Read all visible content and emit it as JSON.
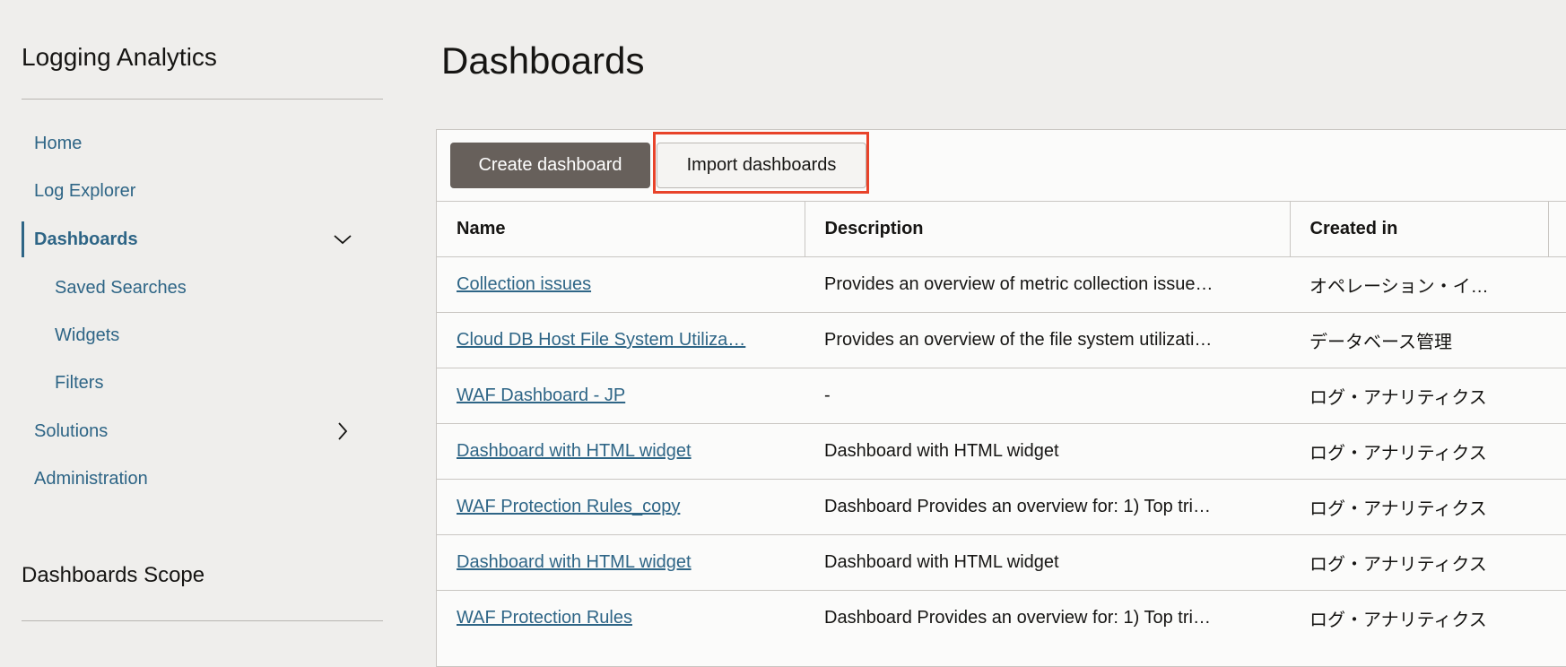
{
  "sidebar": {
    "title": "Logging Analytics",
    "items": [
      {
        "label": "Home"
      },
      {
        "label": "Log Explorer"
      },
      {
        "label": "Dashboards"
      },
      {
        "label": "Saved Searches"
      },
      {
        "label": "Widgets"
      },
      {
        "label": "Filters"
      },
      {
        "label": "Solutions"
      },
      {
        "label": "Administration"
      }
    ],
    "scope_title": "Dashboards Scope"
  },
  "main": {
    "title": "Dashboards",
    "toolbar": {
      "create_label": "Create dashboard",
      "import_label": "Import dashboards"
    },
    "highlight_color": "#e8432a",
    "columns": [
      "Name",
      "Description",
      "Created in"
    ],
    "rows": [
      {
        "name": "Collection issues",
        "description": "Provides an overview of metric collection issue…",
        "created_in": "オペレーション・イ…"
      },
      {
        "name": "Cloud DB Host File System Utiliza…",
        "description": "Provides an overview of the file system utilizati…",
        "created_in": "データベース管理"
      },
      {
        "name": "WAF Dashboard - JP",
        "description": "-",
        "created_in": "ログ・アナリティクス"
      },
      {
        "name": "Dashboard with HTML widget",
        "description": "Dashboard with HTML widget",
        "created_in": "ログ・アナリティクス"
      },
      {
        "name": "WAF Protection Rules_copy",
        "description": "Dashboard Provides an overview for: 1) Top tri…",
        "created_in": "ログ・アナリティクス"
      },
      {
        "name": "Dashboard with HTML widget",
        "description": "Dashboard with HTML widget",
        "created_in": "ログ・アナリティクス"
      },
      {
        "name": "WAF Protection Rules",
        "description": "Dashboard Provides an overview for: 1) Top tri…",
        "created_in": "ログ・アナリティクス"
      }
    ]
  }
}
